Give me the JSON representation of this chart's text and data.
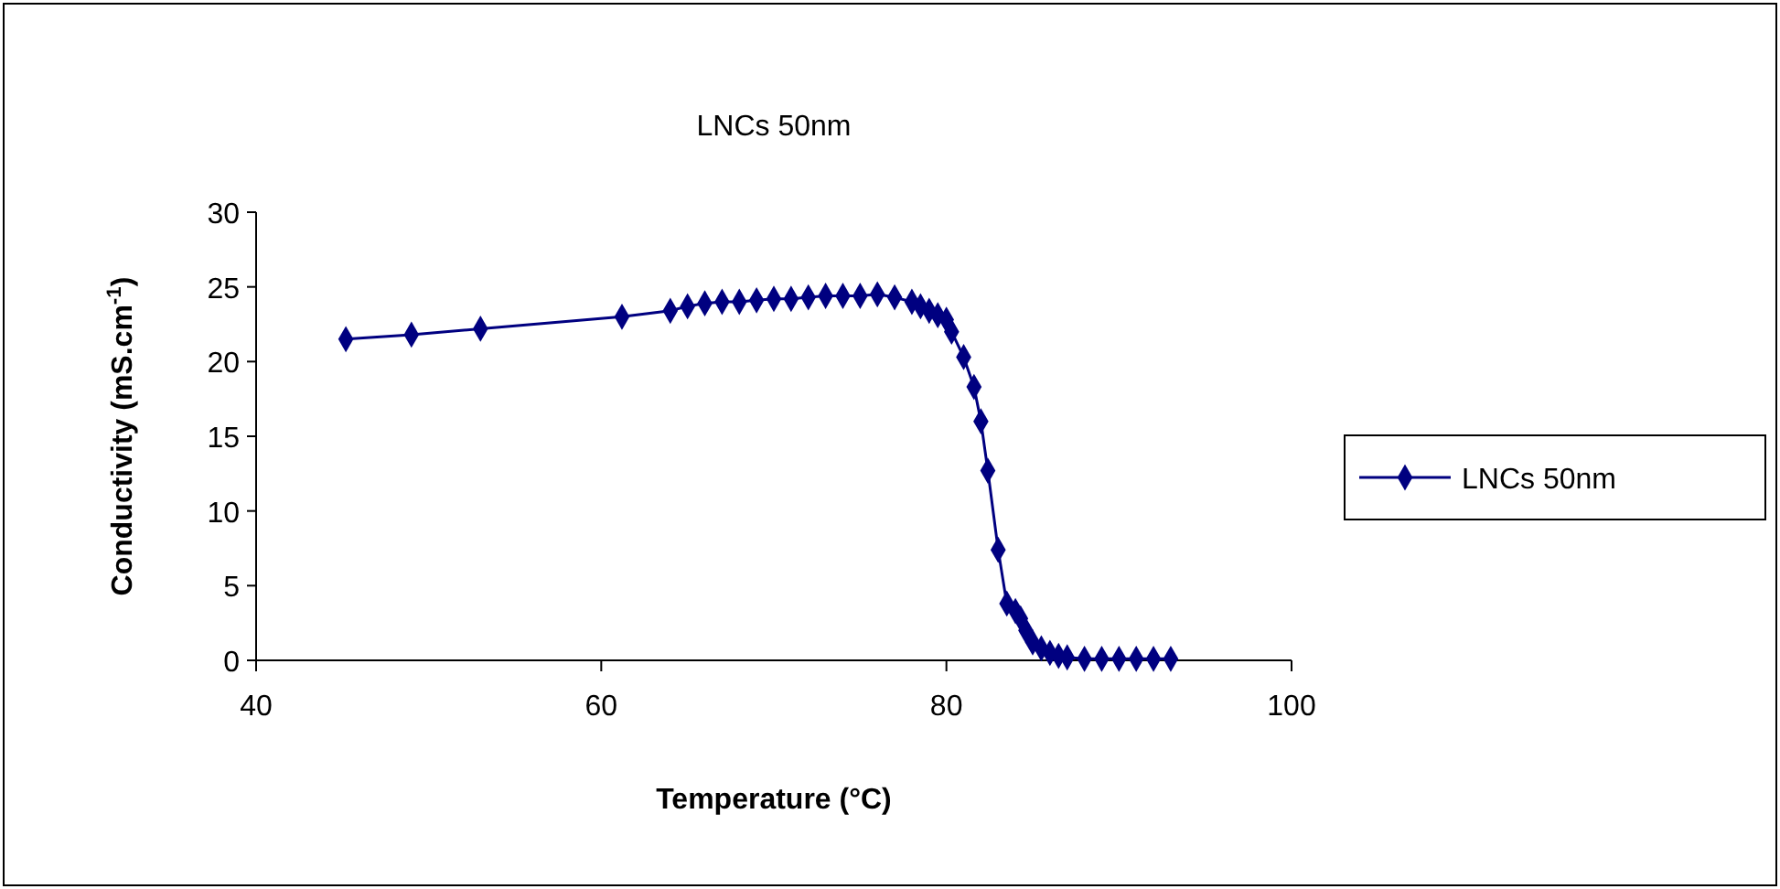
{
  "chart_data": {
    "type": "line",
    "title": "LNCs 50nm",
    "xlabel": "Temperature (°C)",
    "ylabel": "Conductivity (mS.cm$^{-1}$)",
    "xlim": [
      40,
      100
    ],
    "xticks": [
      40,
      60,
      80,
      100
    ],
    "ylim": [
      0,
      30
    ],
    "yticks": [
      0,
      5,
      10,
      15,
      20,
      25,
      30
    ],
    "grid": false,
    "legend": "right",
    "marker": "diamond",
    "line_style": "solid",
    "x": [
      45.2,
      49,
      53,
      61.2,
      64,
      65,
      66,
      67,
      68,
      69,
      70,
      71,
      72,
      73,
      74,
      75,
      76,
      77,
      78,
      78.5,
      79,
      79.5,
      80,
      80.3,
      81,
      81.6,
      82,
      82.4,
      83,
      83.5,
      84,
      84.3,
      84.6,
      85,
      85.5,
      86,
      86.5,
      87,
      88,
      89,
      90,
      91,
      92,
      93
    ],
    "series": [
      {
        "name": "LNCs 50nm",
        "color": "#000080",
        "values": [
          21.5,
          21.8,
          22.2,
          23,
          23.4,
          23.7,
          23.9,
          24,
          24,
          24.1,
          24.2,
          24.2,
          24.3,
          24.4,
          24.4,
          24.4,
          24.5,
          24.3,
          24,
          23.7,
          23.4,
          23.1,
          22.8,
          22,
          20.3,
          18.3,
          16,
          12.7,
          7.4,
          3.8,
          3.3,
          2.8,
          2,
          1.2,
          0.8,
          0.5,
          0.3,
          0.2,
          0.1,
          0.1,
          0.1,
          0.1,
          0.1,
          0.1
        ]
      }
    ]
  }
}
